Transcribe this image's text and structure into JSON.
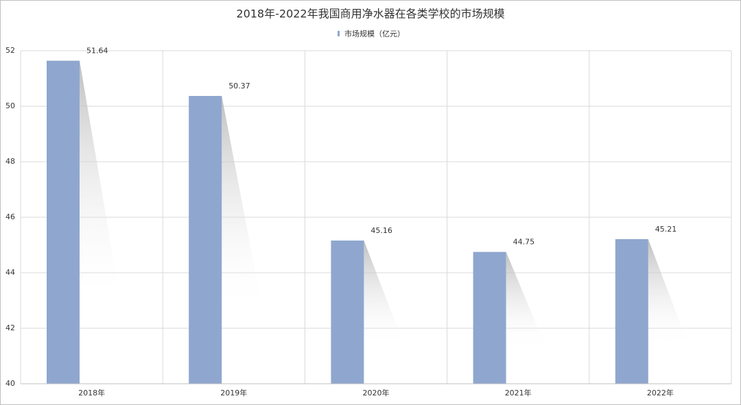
{
  "chart_data": {
    "type": "bar",
    "title": "2018年-2022年我国商用净水器在各类学校的市场规模",
    "categories": [
      "2018年",
      "2019年",
      "2020年",
      "2021年",
      "2022年"
    ],
    "series": [
      {
        "name": "市场规模（亿元）",
        "color": "#8fa7cf",
        "values": [
          51.64,
          50.37,
          45.16,
          44.75,
          45.21
        ]
      }
    ],
    "ylim": [
      40,
      52
    ],
    "yticks": [
      40,
      42,
      44,
      46,
      48,
      50,
      52
    ],
    "grid": true,
    "legend": "top"
  }
}
